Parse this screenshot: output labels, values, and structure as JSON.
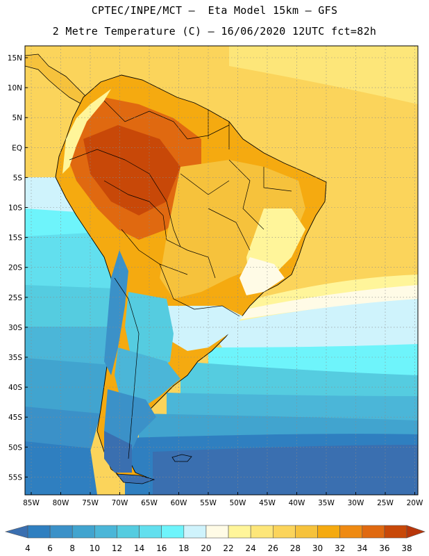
{
  "header": {
    "line1": "CPTEC/INPE/MCT –  Eta Model 15km – GFS",
    "line2": "2 Metre Temperature (C) – 16/06/2020 12UTC fct=82h"
  },
  "axes": {
    "lat_labels": [
      "15N",
      "10N",
      "5N",
      "EQ",
      "5S",
      "10S",
      "15S",
      "20S",
      "25S",
      "30S",
      "35S",
      "40S",
      "45S",
      "50S",
      "55S"
    ],
    "lon_labels": [
      "85W",
      "80W",
      "75W",
      "70W",
      "65W",
      "60W",
      "55W",
      "50W",
      "45W",
      "40W",
      "35W",
      "30W",
      "25W",
      "20W"
    ]
  },
  "colorbar": {
    "ticks": [
      "4",
      "6",
      "8",
      "10",
      "12",
      "14",
      "16",
      "18",
      "20",
      "22",
      "24",
      "26",
      "28",
      "30",
      "32",
      "34",
      "36",
      "38"
    ],
    "colors": [
      "#3a6fb0",
      "#2f7fc0",
      "#3b91c8",
      "#41a4cf",
      "#4bb6d8",
      "#55cce0",
      "#62dfee",
      "#6ef4fb",
      "#cff3fc",
      "#fffbe6",
      "#fff59a",
      "#fde679",
      "#fbd45b",
      "#f6c23c",
      "#f5aa10",
      "#ef8a12",
      "#e06910",
      "#c84808",
      "#b8360a"
    ]
  },
  "legend_bins": [
    {
      "range": "<4",
      "color": "#3a6fb0"
    },
    {
      "range": "4-6",
      "color": "#2f7fc0"
    },
    {
      "range": "6-8",
      "color": "#3b91c8"
    }
  ]
}
